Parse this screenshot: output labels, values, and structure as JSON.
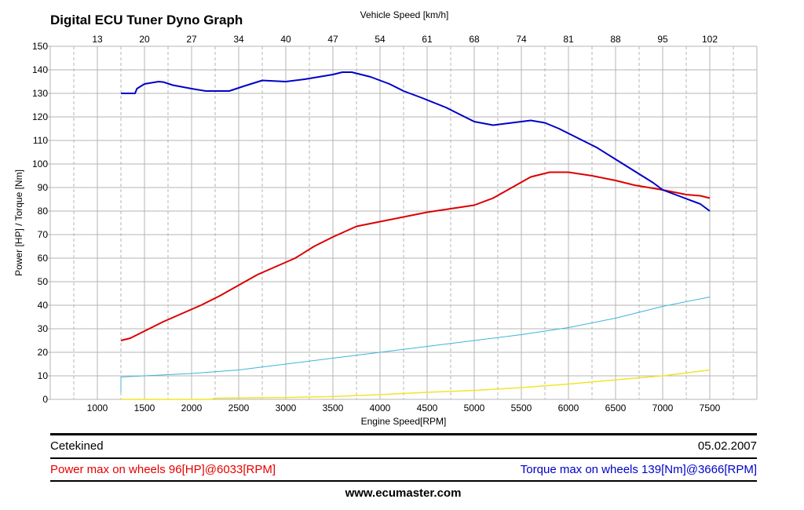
{
  "header": {
    "title": "Digital ECU Tuner Dyno Graph"
  },
  "chart_data": {
    "type": "line",
    "title": "Digital ECU Tuner Dyno Graph",
    "xlabel": "Engine Speed[RPM]",
    "ylabel": "Power [HP] / Torque [Nm]",
    "x2label": "Vehicle Speed [km/h]",
    "xlim": [
      500,
      8000
    ],
    "ylim": [
      0,
      150
    ],
    "grid": true,
    "x_ticks": [
      1000,
      1500,
      2000,
      2500,
      3000,
      3500,
      4000,
      4500,
      5000,
      5500,
      6000,
      6500,
      7000,
      7500
    ],
    "x_minor_dashed_ticks": [
      750,
      1250,
      1750,
      2250,
      2750,
      3250,
      3750,
      4250,
      4750,
      5250,
      5750,
      6250,
      6750,
      7250,
      7750
    ],
    "y_ticks": [
      0,
      10,
      20,
      30,
      40,
      50,
      60,
      70,
      80,
      90,
      100,
      110,
      120,
      130,
      140,
      150
    ],
    "x2_ticks": [
      {
        "rpm": 1000,
        "label": "13"
      },
      {
        "rpm": 1500,
        "label": "20"
      },
      {
        "rpm": 2000,
        "label": "27"
      },
      {
        "rpm": 2500,
        "label": "34"
      },
      {
        "rpm": 3000,
        "label": "40"
      },
      {
        "rpm": 3500,
        "label": "47"
      },
      {
        "rpm": 4000,
        "label": "54"
      },
      {
        "rpm": 4500,
        "label": "61"
      },
      {
        "rpm": 5000,
        "label": "68"
      },
      {
        "rpm": 5500,
        "label": "74"
      },
      {
        "rpm": 6000,
        "label": "81"
      },
      {
        "rpm": 6500,
        "label": "88"
      },
      {
        "rpm": 7000,
        "label": "95"
      },
      {
        "rpm": 7500,
        "label": "102"
      }
    ],
    "series": [
      {
        "name": "Torque [Nm]",
        "color": "#0000c8",
        "width": 2,
        "x": [
          1250,
          1400,
          1420,
          1500,
          1650,
          1700,
          1800,
          2000,
          2150,
          2400,
          2550,
          2750,
          3000,
          3200,
          3500,
          3600,
          3700,
          3900,
          4100,
          4250,
          4450,
          4700,
          4900,
          5000,
          5200,
          5400,
          5600,
          5750,
          5900,
          6100,
          6300,
          6500,
          6700,
          6900,
          7000,
          7200,
          7400,
          7500
        ],
        "y": [
          130,
          130,
          132,
          134,
          135,
          134.8,
          133.5,
          132,
          131,
          131,
          133,
          135.5,
          135,
          136,
          138,
          139,
          139,
          137,
          134,
          131,
          128,
          124,
          120,
          118,
          116.5,
          117.5,
          118.5,
          117.5,
          115,
          111,
          107,
          102,
          97,
          92,
          89,
          86,
          83,
          80
        ]
      },
      {
        "name": "Power [HP]",
        "color": "#dc0000",
        "width": 2,
        "x": [
          1250,
          1350,
          1500,
          1700,
          1900,
          2100,
          2300,
          2500,
          2700,
          2900,
          3100,
          3300,
          3500,
          3750,
          4000,
          4250,
          4500,
          4750,
          5000,
          5200,
          5400,
          5600,
          5800,
          6000,
          6250,
          6500,
          6700,
          7000,
          7250,
          7400,
          7500
        ],
        "y": [
          25,
          26,
          29,
          33,
          36.5,
          40,
          44,
          48.5,
          53,
          56.5,
          60,
          65,
          69,
          73.5,
          75.5,
          77.5,
          79.5,
          81,
          82.5,
          85.5,
          90,
          94.5,
          96.5,
          96.5,
          95,
          93,
          91,
          89,
          87,
          86.5,
          85.5
        ]
      },
      {
        "name": "Cyan trace",
        "color": "#3cb4dc",
        "width": 1,
        "x": [
          1250,
          1250,
          1500,
          2000,
          2500,
          3000,
          3500,
          4000,
          4500,
          5000,
          5500,
          6000,
          6500,
          7000,
          7500
        ],
        "y": [
          3,
          9.5,
          10,
          11,
          12.5,
          15,
          17.5,
          20,
          22.5,
          25,
          27.5,
          30.5,
          34.5,
          39.5,
          43.5
        ]
      },
      {
        "name": "Yellow trace",
        "color": "#f0e628",
        "width": 1.5,
        "x": [
          1250,
          2200,
          2250,
          3000,
          3500,
          4000,
          4500,
          5000,
          5500,
          6000,
          6500,
          7000,
          7500
        ],
        "y": [
          0,
          0,
          0.5,
          0.8,
          1.2,
          2,
          3,
          3.8,
          5,
          6.5,
          8.3,
          10,
          12.5
        ]
      }
    ]
  },
  "footer": {
    "name": "Cetekined",
    "date": "05.02.2007",
    "power_max": "Power max on wheels 96[HP]@6033[RPM]",
    "torque_max": "Torque max on wheels 139[Nm]@3666[RPM]",
    "website": "www.ecumaster.com",
    "power_color": "#e60000",
    "torque_color": "#0000c8"
  }
}
